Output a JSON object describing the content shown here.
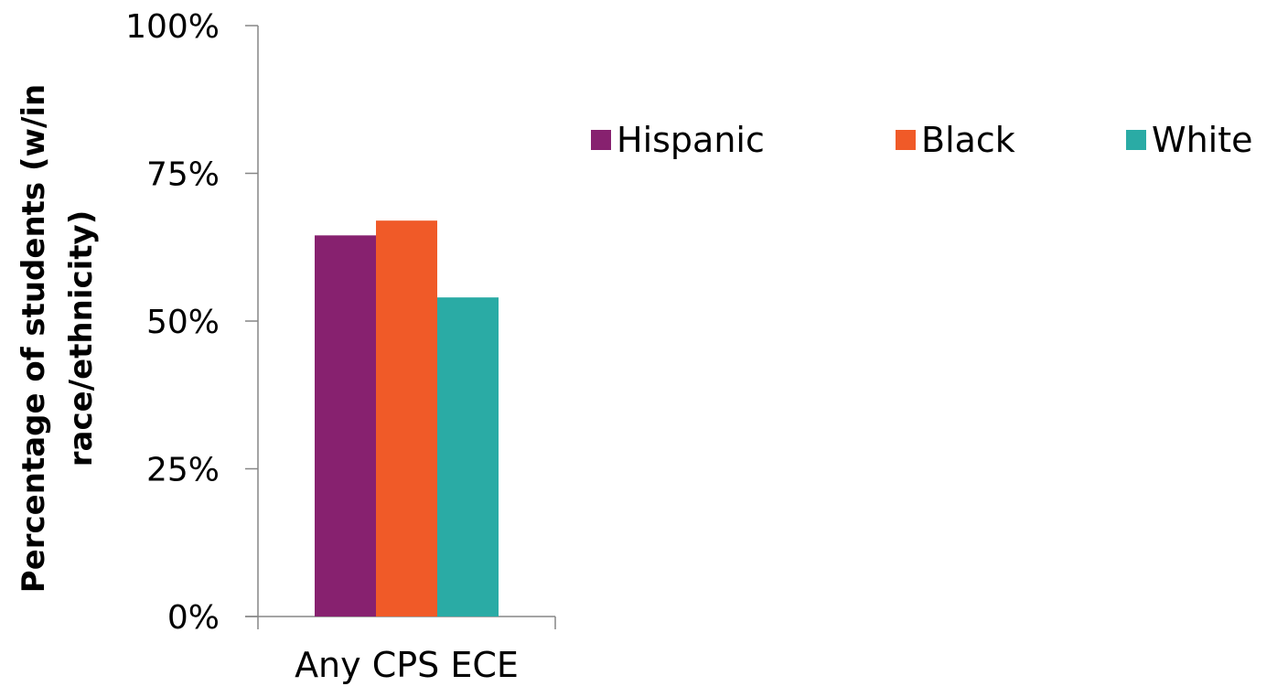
{
  "chart_data": {
    "type": "bar",
    "title": "",
    "categories": [
      "Any CPS ECE"
    ],
    "series": [
      {
        "name": "Hispanic",
        "values": [
          64.5
        ],
        "color": "#87216F"
      },
      {
        "name": "Black",
        "values": [
          67.0
        ],
        "color": "#F05A28"
      },
      {
        "name": "White",
        "values": [
          54.0
        ],
        "color": "#2AABA5"
      }
    ],
    "ylim": [
      0,
      100
    ],
    "yticks": [
      "0%",
      "25%",
      "50%",
      "75%",
      "100%"
    ],
    "ylabel_lines": [
      "Percentage of students (w/in",
      "race/ethnicity)"
    ],
    "xlabel": "",
    "grid": false,
    "legend_position": "top-right"
  }
}
